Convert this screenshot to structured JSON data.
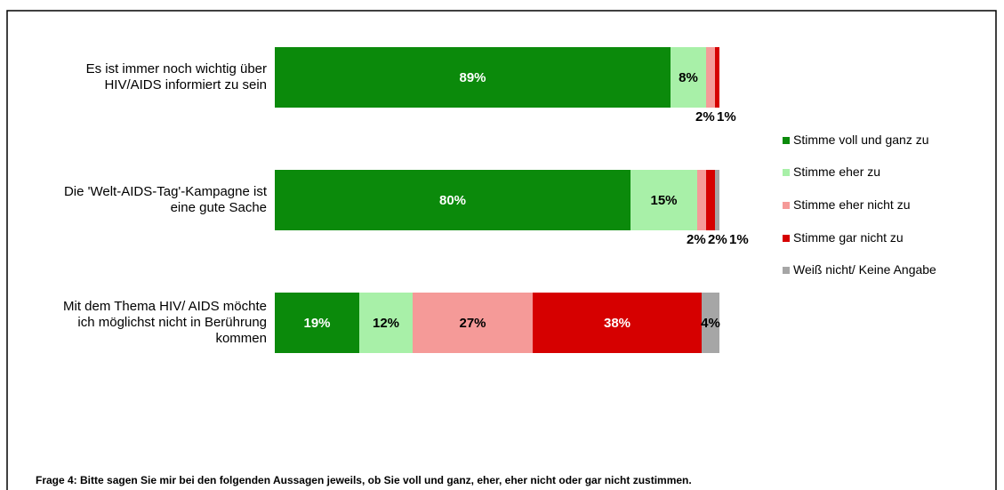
{
  "chart_data": {
    "type": "stacked_bar_horizontal",
    "categories": [
      "Es ist immer noch wichtig über HIV/AIDS informiert zu sein",
      "Die 'Welt-AIDS-Tag'-Kampagne ist eine gute Sache",
      "Mit dem Thema HIV/ AIDS möchte ich möglichst nicht in Berührung kommen"
    ],
    "series": [
      {
        "name": "Stimme voll und ganz zu",
        "color": "#0b8a0b",
        "values": [
          89,
          80,
          19
        ],
        "value_labels": [
          "89%",
          "80%",
          "19%"
        ]
      },
      {
        "name": "Stimme eher zu",
        "color": "#a8f0a8",
        "values": [
          8,
          15,
          12
        ],
        "value_labels": [
          "8%",
          "15%",
          "12%"
        ]
      },
      {
        "name": "Stimme eher nicht zu",
        "color": "#f59a98",
        "values": [
          2,
          2,
          27
        ],
        "value_labels": [
          "2%",
          "2%",
          "27%"
        ]
      },
      {
        "name": "Stimme gar nicht zu",
        "color": "#d60000",
        "values": [
          1,
          2,
          38
        ],
        "value_labels": [
          "1%",
          "2%",
          "38%"
        ]
      },
      {
        "name": "Weiß nicht/ Keine Angabe",
        "color": "#a6a6a6",
        "values": [
          null,
          1,
          4
        ],
        "value_labels": [
          null,
          "1%",
          "4%"
        ]
      }
    ],
    "xlim": [
      0,
      100
    ],
    "footnote": "Frage 4: Bitte sagen Sie mir bei den folgenden Aussagen  jeweils, ob Sie voll und ganz, eher, eher nicht oder gar nicht zustimmen."
  }
}
